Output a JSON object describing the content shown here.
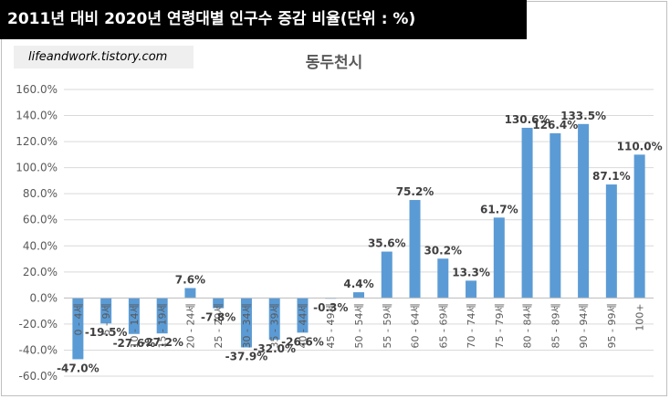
{
  "header": {
    "banner_title": "2011년 대비 2020년 연령대별 인구수 증감 비율(단위 : %)",
    "source_label": "lifeandwork.tistory.com"
  },
  "chart_data": {
    "type": "bar",
    "title": "동두천시",
    "xlabel": "",
    "ylabel": "",
    "ylim": [
      -60,
      160
    ],
    "yticks": [
      "160.0%",
      "140.0%",
      "120.0%",
      "100.0%",
      "80.0%",
      "60.0%",
      "40.0%",
      "20.0%",
      "0.0%",
      "-20.0%",
      "-40.0%",
      "-60.0%"
    ],
    "ytick_values": [
      160,
      140,
      120,
      100,
      80,
      60,
      40,
      20,
      0,
      -20,
      -40,
      -60
    ],
    "grid": true,
    "legend": "none",
    "bar_color": "#5b9bd5",
    "categories": [
      "0 - 4세",
      "5 - 9세",
      "10 - 14세",
      "15 - 19세",
      "20 - 24세",
      "25 - 29세",
      "30 - 34세",
      "35 - 39세",
      "40 - 44세",
      "45 - 49세",
      "50 - 54세",
      "55 - 59세",
      "60 - 64세",
      "65 - 69세",
      "70 - 74세",
      "75 - 79세",
      "80 - 84세",
      "85 - 89세",
      "90 - 94세",
      "95 - 99세",
      "100+"
    ],
    "values": [
      -47.0,
      -19.5,
      -27.6,
      -27.2,
      7.6,
      -7.8,
      -37.9,
      -32.0,
      -26.6,
      -0.3,
      4.4,
      35.6,
      75.2,
      30.2,
      13.3,
      61.7,
      130.6,
      126.4,
      133.5,
      87.1,
      110.0
    ],
    "data_labels": [
      "-47.0%",
      "-19.5%",
      "-27.6%",
      "-27.2%",
      "7.6%",
      "-7.8%",
      "-37.9%",
      "-32.0%",
      "-26.6%",
      "-0.3%",
      "4.4%",
      "35.6%",
      "75.2%",
      "30.2%",
      "13.3%",
      "61.7%",
      "130.6%",
      "126.4%",
      "133.5%",
      "87.1%",
      "110.0%"
    ]
  }
}
